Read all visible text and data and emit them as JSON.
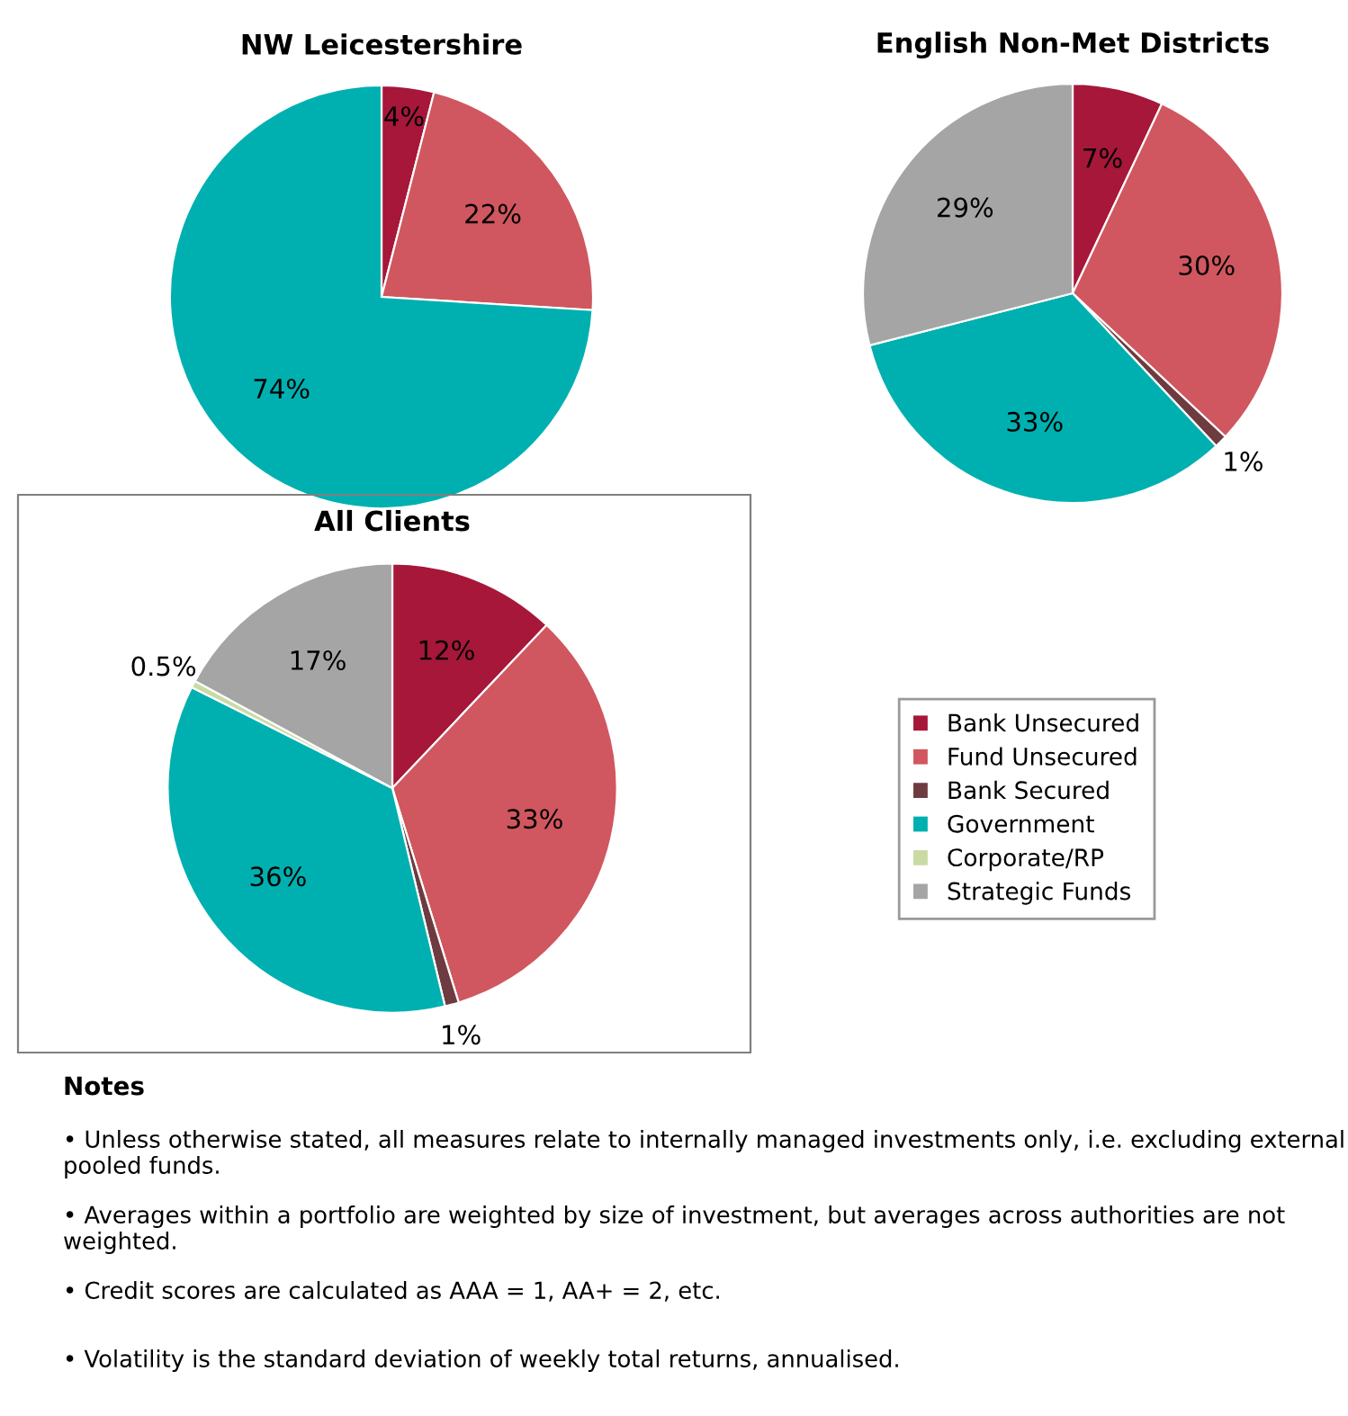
{
  "chart_data": [
    {
      "type": "pie",
      "title": "NW Leicestershire",
      "categories": [
        "Bank Unsecured",
        "Fund Unsecured",
        "Bank Secured",
        "Government",
        "Corporate/RP",
        "Strategic Funds"
      ],
      "values": [
        4,
        22,
        null,
        74,
        null,
        null
      ],
      "colors": [
        "#a6173a",
        "#d0575f",
        "#6e3b40",
        "#00b0b0",
        "#c9dba3",
        "#a5a5a5"
      ],
      "value_labels": [
        "4%",
        "22%",
        null,
        "74%",
        null,
        null
      ],
      "legend": "right"
    },
    {
      "type": "pie",
      "title": "English Non-Met Districts",
      "categories": [
        null,
        null,
        null,
        null,
        null,
        null
      ],
      "values": [
        7,
        30,
        1,
        33,
        null,
        29
      ],
      "colors": [
        "#a6173a",
        "#d0575f",
        "#6e3b40",
        "#00b0b0",
        "#c9dba3",
        "#a5a5a5"
      ],
      "value_labels": [
        "7%",
        "30%",
        "1%",
        "33%",
        null,
        "29%"
      ]
    },
    {
      "type": "pie",
      "title": "All Clients",
      "categories": [
        null,
        null,
        null,
        null,
        null,
        null
      ],
      "values": [
        12,
        33,
        1,
        36,
        0.5,
        17
      ],
      "colors": [
        "#a6173a",
        "#d0575f",
        "#6e3b40",
        "#00b0b0",
        "#c9dba3",
        "#a5a5a5"
      ],
      "value_labels": [
        "12%",
        "33%",
        "1%",
        "36%",
        "0.5%",
        "17%"
      ]
    },
    {
      "type": "other",
      "title": "Notes",
      "annotations": [
        "• Unless otherwise stated, all measures relate to internally managed investments only, i.e. excluding external pooled funds.",
        "• Averages within a portfolio are weighted by size of investment, but averages across authorities are not weighted.",
        "• Credit scores are calculated as AAA = 1, AA+ = 2, etc.",
        "• Volatility is the standard deviation of weekly total returns, annualised."
      ]
    }
  ]
}
